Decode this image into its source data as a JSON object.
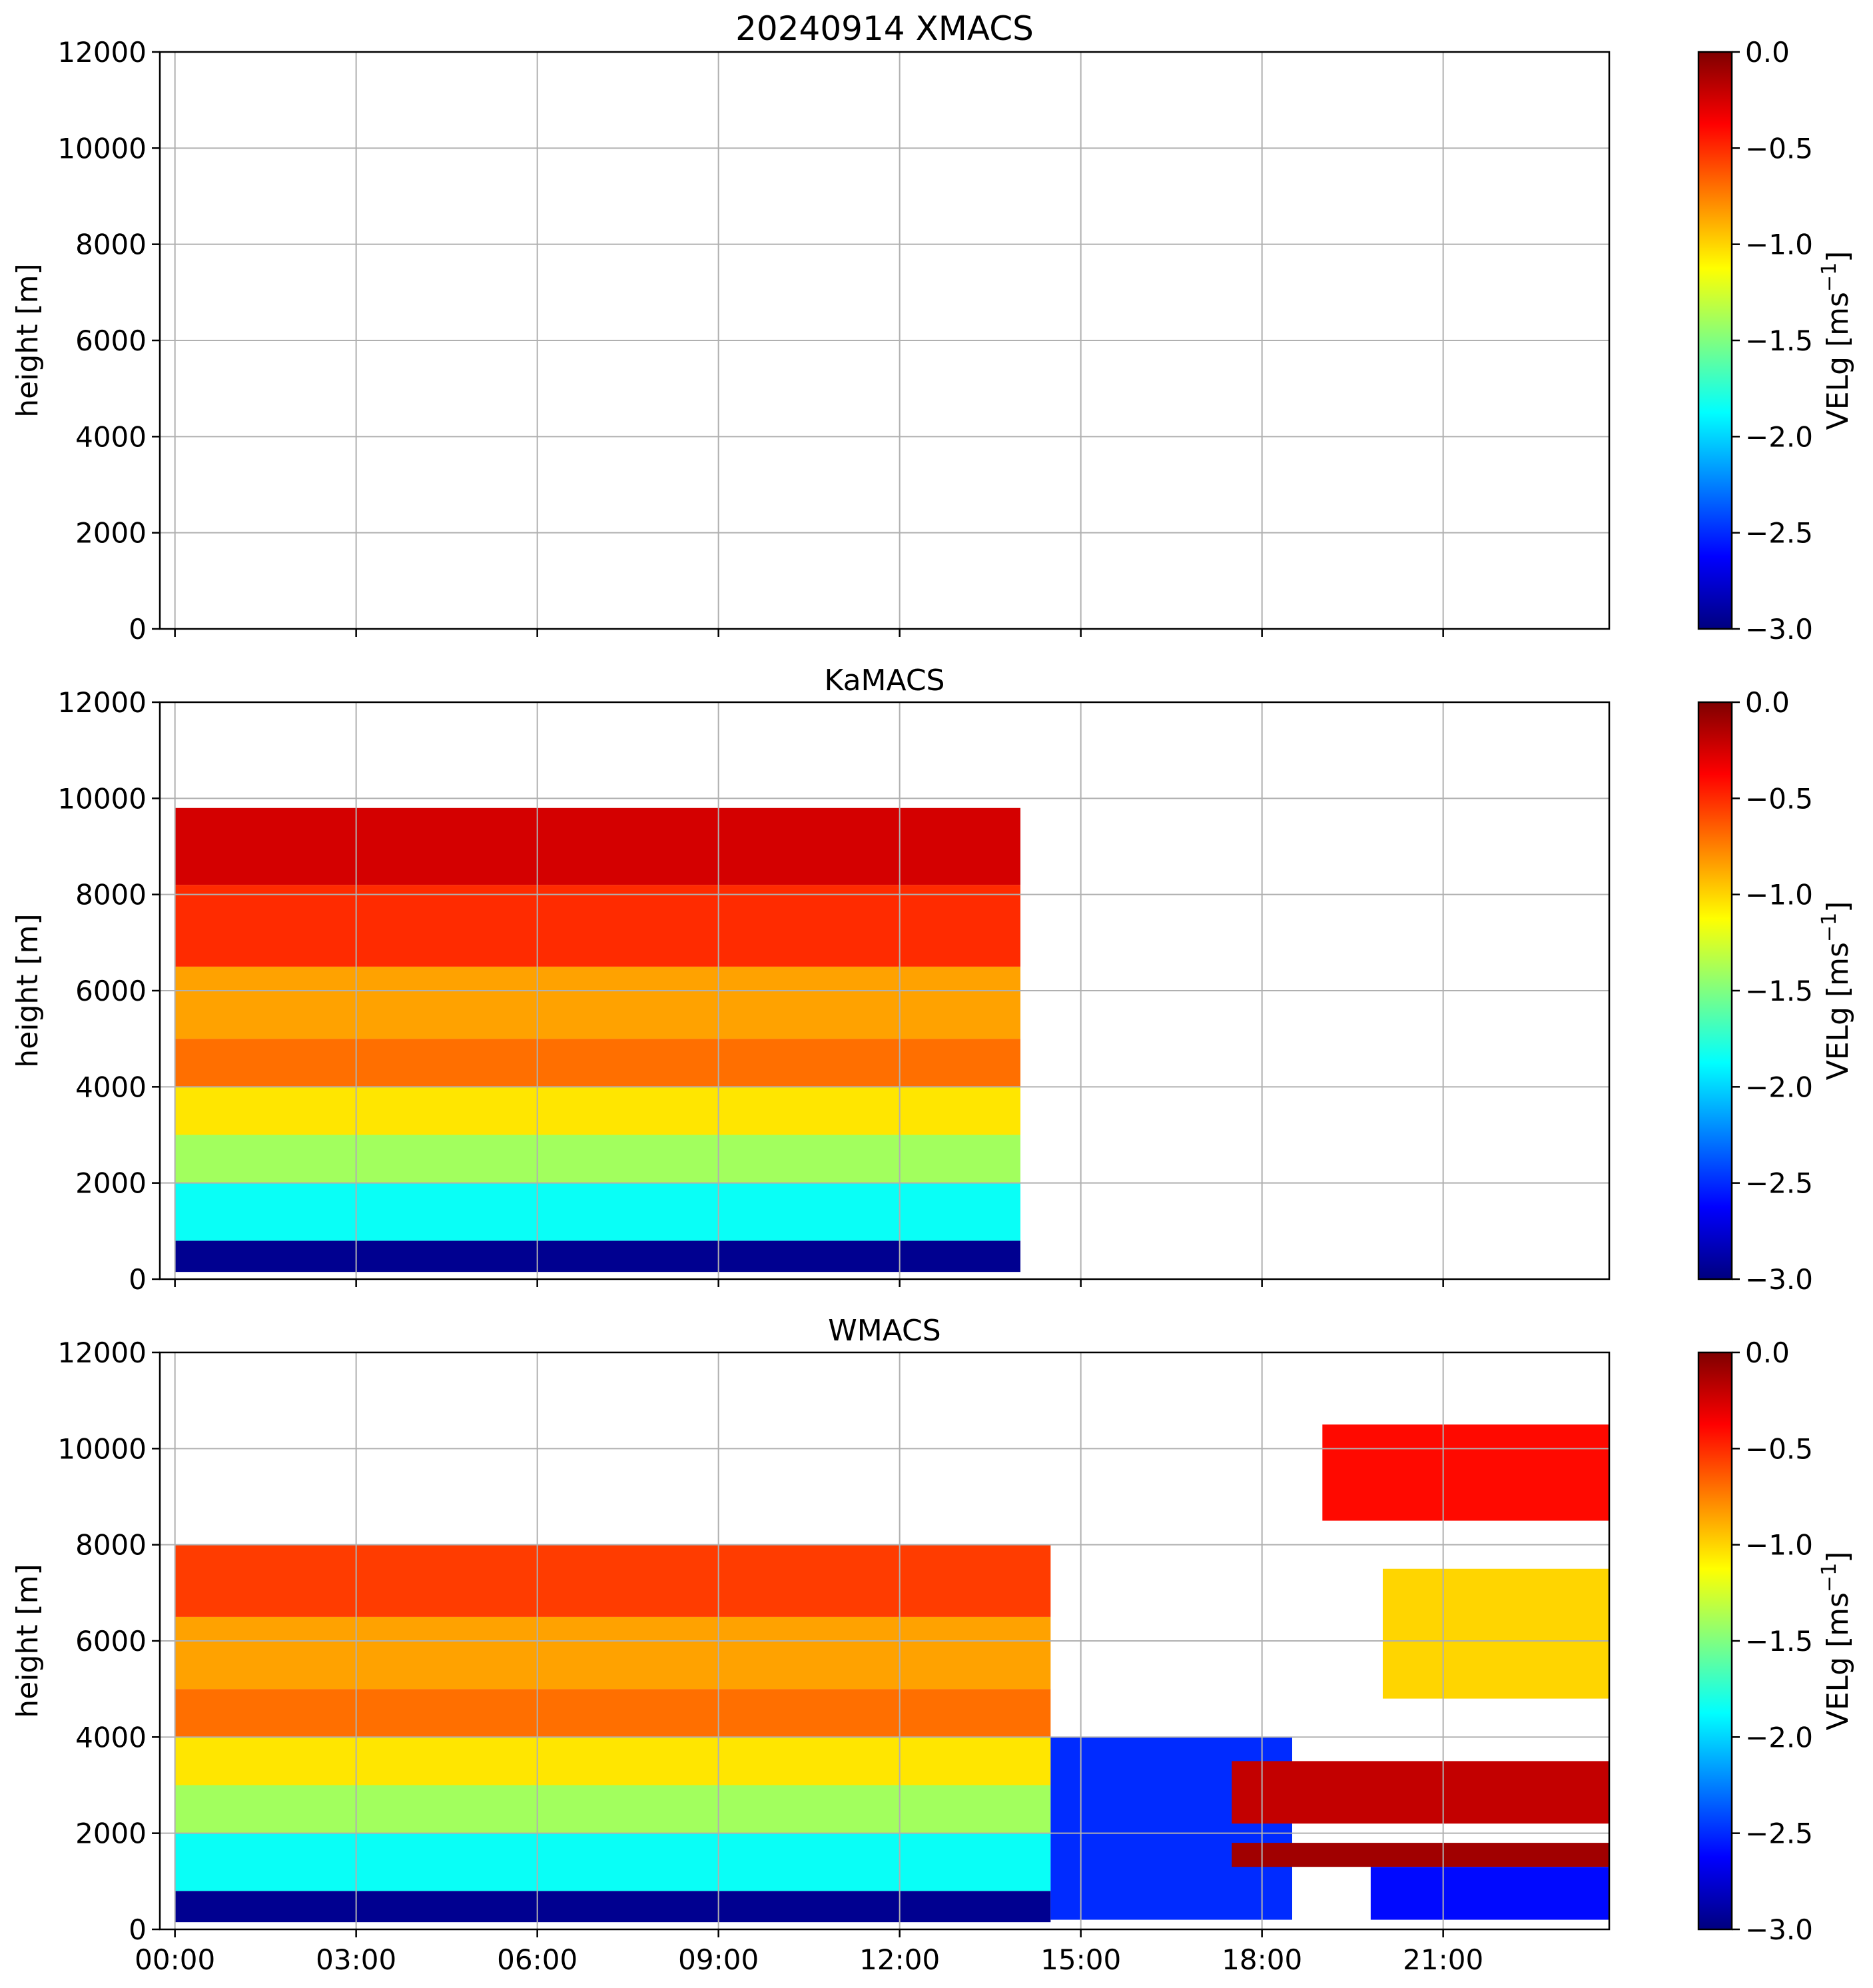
{
  "colorbar": {
    "label": "VELg [ms",
    "label_sup": "−1",
    "label_end": "]",
    "ticks": [
      "0.0",
      "−0.5",
      "−1.0",
      "−1.5",
      "−2.0",
      "−2.5",
      "−3.0"
    ],
    "range": [
      -3.0,
      0.0
    ],
    "colormap": "jet",
    "stops": [
      "#00007f",
      "#0000ff",
      "#0080ff",
      "#00ffff",
      "#80ff80",
      "#ffff00",
      "#ff8000",
      "#ff0000",
      "#7f0000"
    ]
  },
  "chart_data": [
    {
      "type": "heatmap",
      "title": "20240914 XMACS",
      "ylabel": "height [m]",
      "ylim": [
        0,
        12000
      ],
      "yticks": [
        "0",
        "2000",
        "4000",
        "6000",
        "8000",
        "10000",
        "12000"
      ],
      "xlabels_shown": false,
      "xticks": [
        "00:00",
        "03:00",
        "06:00",
        "09:00",
        "12:00",
        "15:00",
        "18:00",
        "21:00"
      ],
      "grid": true,
      "has_data": false,
      "layers": []
    },
    {
      "type": "heatmap",
      "title": "KaMACS",
      "ylabel": "height [m]",
      "ylim": [
        0,
        12000
      ],
      "yticks": [
        "0",
        "2000",
        "4000",
        "6000",
        "8000",
        "10000",
        "12000"
      ],
      "xlabels_shown": false,
      "xticks": [
        "00:00",
        "03:00",
        "06:00",
        "09:00",
        "12:00",
        "15:00",
        "18:00",
        "21:00"
      ],
      "grid": true,
      "has_data": true,
      "layers": [
        {
          "t": [
            0.0,
            14.0
          ],
          "h": [
            150,
            800
          ],
          "vel": -2.95
        },
        {
          "t": [
            0.0,
            14.0
          ],
          "h": [
            800,
            2000
          ],
          "vel": -1.85
        },
        {
          "t": [
            0.0,
            14.0
          ],
          "h": [
            2000,
            3000
          ],
          "vel": -1.4
        },
        {
          "t": [
            0.0,
            14.0
          ],
          "h": [
            3000,
            4000
          ],
          "vel": -1.05
        },
        {
          "t": [
            0.0,
            14.0
          ],
          "h": [
            4000,
            5000
          ],
          "vel": -0.7
        },
        {
          "t": [
            0.0,
            14.0
          ],
          "h": [
            5000,
            6500
          ],
          "vel": -0.85
        },
        {
          "t": [
            0.0,
            14.0
          ],
          "h": [
            6500,
            8200
          ],
          "vel": -0.5
        },
        {
          "t": [
            0.0,
            14.0
          ],
          "h": [
            8200,
            9800
          ],
          "vel": -0.25
        }
      ]
    },
    {
      "type": "heatmap",
      "title": "WMACS",
      "ylabel": "height [m]",
      "ylim": [
        0,
        12000
      ],
      "yticks": [
        "0",
        "2000",
        "4000",
        "6000",
        "8000",
        "10000",
        "12000"
      ],
      "xlabels_shown": true,
      "xticks": [
        "00:00",
        "03:00",
        "06:00",
        "09:00",
        "12:00",
        "15:00",
        "18:00",
        "21:00"
      ],
      "grid": true,
      "has_data": true,
      "layers": [
        {
          "t": [
            0.0,
            14.5
          ],
          "h": [
            150,
            800
          ],
          "vel": -2.95
        },
        {
          "t": [
            0.0,
            14.5
          ],
          "h": [
            800,
            2000
          ],
          "vel": -1.85
        },
        {
          "t": [
            0.0,
            14.5
          ],
          "h": [
            2000,
            3000
          ],
          "vel": -1.4
        },
        {
          "t": [
            0.0,
            14.5
          ],
          "h": [
            3000,
            4000
          ],
          "vel": -1.05
        },
        {
          "t": [
            0.0,
            14.5
          ],
          "h": [
            4000,
            5000
          ],
          "vel": -0.7
        },
        {
          "t": [
            0.0,
            14.5
          ],
          "h": [
            5000,
            6500
          ],
          "vel": -0.85
        },
        {
          "t": [
            0.0,
            14.5
          ],
          "h": [
            6500,
            8000
          ],
          "vel": -0.55
        },
        {
          "t": [
            14.5,
            18.5
          ],
          "h": [
            200,
            4000
          ],
          "vel": -2.5
        },
        {
          "t": [
            17.5,
            24.0
          ],
          "h": [
            2200,
            3500
          ],
          "vel": -0.2
        },
        {
          "t": [
            17.5,
            24.0
          ],
          "h": [
            1300,
            1800
          ],
          "vel": -0.1
        },
        {
          "t": [
            19.8,
            24.0
          ],
          "h": [
            200,
            1300
          ],
          "vel": -2.6
        },
        {
          "t": [
            20.0,
            24.0
          ],
          "h": [
            4800,
            7500
          ],
          "vel": -1.0
        },
        {
          "t": [
            19.0,
            24.0
          ],
          "h": [
            8500,
            10500
          ],
          "vel": -0.4
        }
      ]
    }
  ]
}
